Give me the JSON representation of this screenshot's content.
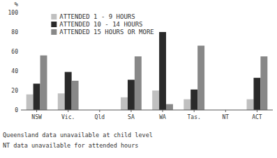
{
  "chart_data": {
    "type": "bar",
    "categories": [
      "NSW",
      "Vic.",
      "Qld",
      "SA",
      "WA",
      "Tas.",
      "NT",
      "ACT"
    ],
    "series": [
      {
        "name": "ATTENDED 1 - 9 HOURS",
        "color": "#c0c0c0",
        "values": [
          16,
          17,
          0,
          13,
          20,
          11,
          0,
          11
        ]
      },
      {
        "name": "ATTENDED 10 - 14 HOURS",
        "color": "#2a2a2a",
        "values": [
          27,
          39,
          0,
          31,
          80,
          21,
          0,
          33
        ]
      },
      {
        "name": "ATTENDED 15 HOURS OR MORE",
        "color": "#888888",
        "values": [
          56,
          30,
          0,
          55,
          6,
          66,
          0,
          55
        ]
      }
    ],
    "ylabel": "%",
    "ylim": [
      0,
      100
    ],
    "yticks": [
      0,
      20,
      40,
      60,
      80,
      100
    ],
    "annotations": [
      "Queensland data unavailable at child level",
      "NT data unavailable for attended hours"
    ],
    "grid": false,
    "legend": "upper left"
  }
}
